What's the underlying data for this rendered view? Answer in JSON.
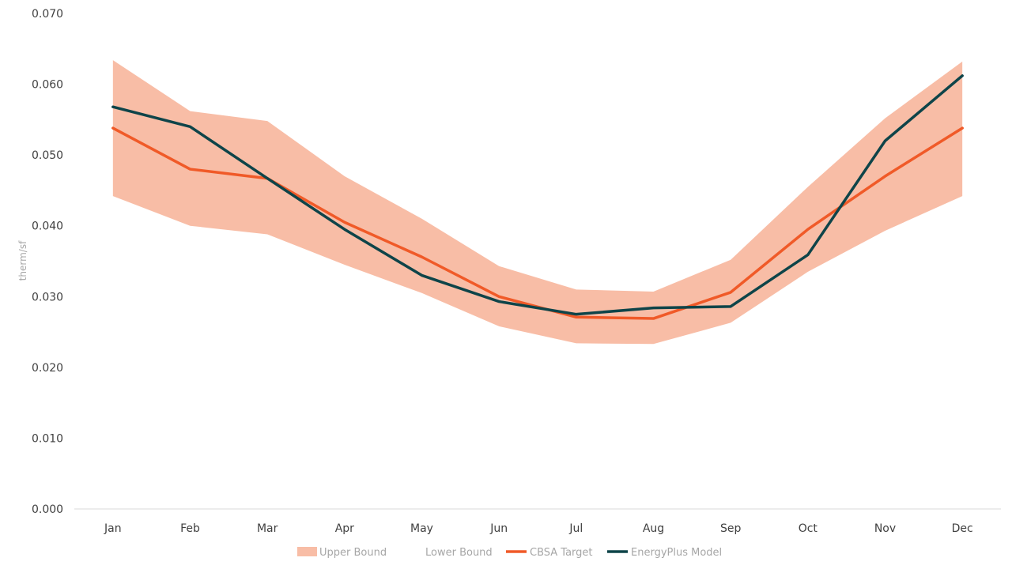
{
  "chart_data": {
    "type": "line",
    "categories": [
      "Jan",
      "Feb",
      "Mar",
      "Apr",
      "May",
      "Jun",
      "Jul",
      "Aug",
      "Sep",
      "Oct",
      "Nov",
      "Dec"
    ],
    "ylabel": "therm/sf",
    "xlabel": "",
    "ylim": [
      0,
      0.07
    ],
    "yticks": [
      "0.000",
      "0.010",
      "0.020",
      "0.030",
      "0.040",
      "0.050",
      "0.060",
      "0.070"
    ],
    "legend_position": "bottom",
    "series": [
      {
        "name": "Upper Bound",
        "kind": "band-upper",
        "color": "#f8bda6",
        "values": [
          0.0634,
          0.0562,
          0.0548,
          0.047,
          0.041,
          0.0343,
          0.031,
          0.0307,
          0.0352,
          0.0455,
          0.0552,
          0.0632
        ]
      },
      {
        "name": "Lower Bound",
        "kind": "band-lower",
        "color": "#ffffff",
        "values": [
          0.0442,
          0.04,
          0.0388,
          0.0345,
          0.0305,
          0.0258,
          0.0234,
          0.0233,
          0.0263,
          0.0335,
          0.0393,
          0.0442
        ]
      },
      {
        "name": "CBSA Target",
        "kind": "line",
        "color": "#f05a28",
        "values": [
          0.0538,
          0.048,
          0.0467,
          0.0405,
          0.0356,
          0.03,
          0.0271,
          0.0269,
          0.0306,
          0.0395,
          0.047,
          0.0538
        ]
      },
      {
        "name": "EnergyPlus Model",
        "kind": "line",
        "color": "#0e4449",
        "values": [
          0.0568,
          0.054,
          0.0467,
          0.0395,
          0.033,
          0.0293,
          0.0275,
          0.0284,
          0.0286,
          0.0359,
          0.052,
          0.0612
        ]
      }
    ]
  }
}
